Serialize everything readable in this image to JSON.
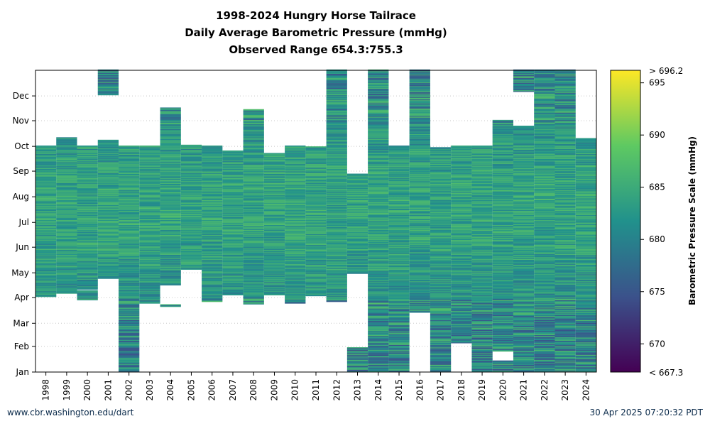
{
  "title_lines": [
    "1998-2024 Hungry Horse Tailrace",
    "Daily Average Barometric Pressure (mmHg)",
    "Observed Range 654.3:755.3"
  ],
  "footer": {
    "left": "www.cbr.washington.edu/dart",
    "right": "30 Apr 2025 07:20:32 PDT"
  },
  "colorbar": {
    "label": "Barometric Pressure Scale (mmHg)",
    "min": 667.3,
    "max": 696.2,
    "ticks": [
      670,
      675,
      680,
      685,
      690,
      695
    ],
    "top_label": "> 696.2",
    "bottom_label": "< 667.3",
    "colors": [
      "#440154",
      "#3b528b",
      "#21918c",
      "#5ec962",
      "#fde725"
    ]
  },
  "chart_data": {
    "type": "heatmap",
    "title": "1998-2024 Hungry Horse Tailrace\nDaily Average Barometric Pressure (mmHg)\nObserved Range 654.3:755.3",
    "x_categories": [
      "1998",
      "1999",
      "2000",
      "2001",
      "2002",
      "2003",
      "2004",
      "2005",
      "2006",
      "2007",
      "2008",
      "2009",
      "2010",
      "2011",
      "2012",
      "2013",
      "2014",
      "2015",
      "2016",
      "2017",
      "2018",
      "2019",
      "2020",
      "2021",
      "2022",
      "2023",
      "2024"
    ],
    "y_tick_labels": [
      "Jan",
      "Feb",
      "Mar",
      "Apr",
      "May",
      "Jun",
      "Jul",
      "Aug",
      "Sep",
      "Oct",
      "Nov",
      "Dec"
    ],
    "y_month_start_day": [
      1,
      32,
      60,
      91,
      121,
      152,
      182,
      213,
      244,
      274,
      305,
      335
    ],
    "y_range_days": [
      1,
      366
    ],
    "value_units": "mmHg",
    "value_range": [
      667.3,
      696.2
    ],
    "data_coverage_days": [
      {
        "year": "1998",
        "segments": [
          [
            92,
            274
          ]
        ]
      },
      {
        "year": "1999",
        "segments": [
          [
            96,
            284
          ]
        ]
      },
      {
        "year": "2000",
        "segments": [
          [
            88,
            99
          ],
          [
            101,
            274
          ]
        ]
      },
      {
        "year": "2001",
        "segments": [
          [
            114,
            281
          ],
          [
            336,
            366
          ]
        ]
      },
      {
        "year": "2002",
        "segments": [
          [
            1,
            274
          ]
        ]
      },
      {
        "year": "2003",
        "segments": [
          [
            84,
            274
          ]
        ]
      },
      {
        "year": "2004",
        "segments": [
          [
            80,
            82
          ],
          [
            106,
            320
          ]
        ]
      },
      {
        "year": "2005",
        "segments": [
          [
            125,
            275
          ]
        ]
      },
      {
        "year": "2006",
        "segments": [
          [
            86,
            274
          ]
        ]
      },
      {
        "year": "2007",
        "segments": [
          [
            94,
            268
          ]
        ]
      },
      {
        "year": "2008",
        "segments": [
          [
            83,
            318
          ]
        ]
      },
      {
        "year": "2009",
        "segments": [
          [
            94,
            265
          ]
        ]
      },
      {
        "year": "2010",
        "segments": [
          [
            84,
            274
          ]
        ]
      },
      {
        "year": "2011",
        "segments": [
          [
            93,
            273
          ]
        ]
      },
      {
        "year": "2012",
        "segments": [
          [
            86,
            366
          ]
        ]
      },
      {
        "year": "2013",
        "segments": [
          [
            1,
            30
          ],
          [
            120,
            240
          ]
        ]
      },
      {
        "year": "2014",
        "segments": [
          [
            1,
            366
          ]
        ]
      },
      {
        "year": "2015",
        "segments": [
          [
            1,
            274
          ]
        ]
      },
      {
        "year": "2016",
        "segments": [
          [
            73,
            366
          ]
        ]
      },
      {
        "year": "2017",
        "segments": [
          [
            1,
            272
          ]
        ]
      },
      {
        "year": "2018",
        "segments": [
          [
            36,
            274
          ]
        ]
      },
      {
        "year": "2019",
        "segments": [
          [
            1,
            274
          ]
        ]
      },
      {
        "year": "2020",
        "segments": [
          [
            1,
            14
          ],
          [
            26,
            305
          ]
        ]
      },
      {
        "year": "2021",
        "segments": [
          [
            1,
            298
          ],
          [
            340,
            366
          ]
        ]
      },
      {
        "year": "2022",
        "segments": [
          [
            1,
            366
          ]
        ]
      },
      {
        "year": "2023",
        "segments": [
          [
            1,
            366
          ]
        ]
      },
      {
        "year": "2024",
        "segments": [
          [
            1,
            283
          ]
        ]
      }
    ],
    "grid": true,
    "legend": "colorbar-right"
  }
}
